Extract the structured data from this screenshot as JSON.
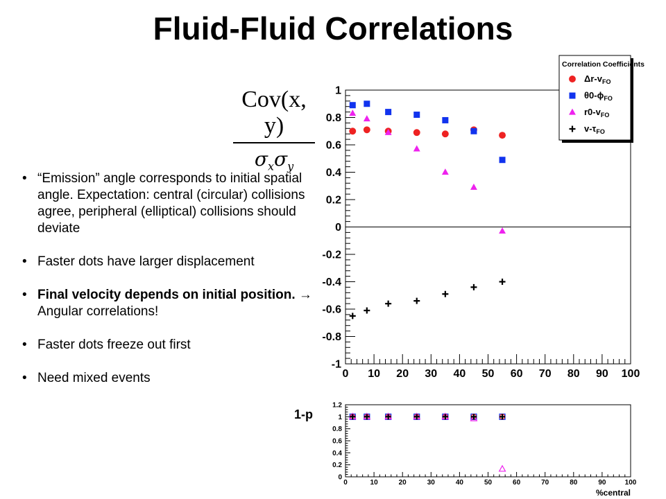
{
  "slide": {
    "title": "Fluid-Fluid Correlations",
    "formula": {
      "numerator": "Cov(x, y)",
      "denominator": "σxσy"
    },
    "bullets": [
      {
        "text": "“Emission” angle corresponds to initial spatial angle. Expectation: central (circular) collisions agree, peripheral (elliptical) collisions should deviate"
      },
      {
        "text": "Faster dots have larger displacement"
      },
      {
        "bold_text": "Final velocity depends on initial position.",
        "text": " → Angular correlations!"
      },
      {
        "text": "Faster dots freeze out first"
      },
      {
        "text": "Need mixed events"
      }
    ],
    "side_label": "1-p"
  },
  "chart_data": [
    {
      "type": "scatter",
      "title": "",
      "xlabel": "",
      "ylabel": "",
      "xlim": [
        0,
        100
      ],
      "ylim": [
        -1,
        1
      ],
      "xticks": [
        "0",
        "10",
        "20",
        "30",
        "40",
        "50",
        "60",
        "70",
        "80",
        "90",
        "100"
      ],
      "yticks": [
        "-1",
        "-0.8",
        "-0.6",
        "-0.4",
        "-0.2",
        "0",
        "0.2",
        "0.4",
        "0.6",
        "0.8",
        "1"
      ],
      "legend": {
        "title": "Correlation Coefficients",
        "position": "top-right",
        "entries": [
          "Δr-v_FO",
          "θ0-ϕ_FO",
          "r0-v_FO",
          "v-τ_FO"
        ]
      },
      "series": [
        {
          "name": "Δr-v_FO",
          "marker": "circle",
          "color": "#ee2222",
          "x": [
            2.5,
            7.5,
            15,
            25,
            35,
            45,
            55
          ],
          "y": [
            0.7,
            0.71,
            0.7,
            0.69,
            0.68,
            0.71,
            0.67
          ]
        },
        {
          "name": "θ0-ϕ_FO",
          "marker": "square",
          "color": "#1133ee",
          "x": [
            2.5,
            7.5,
            15,
            25,
            35,
            45,
            55
          ],
          "y": [
            0.89,
            0.9,
            0.84,
            0.82,
            0.78,
            0.7,
            0.49
          ]
        },
        {
          "name": "r0-v_FO",
          "marker": "triangle",
          "color": "#ee22ee",
          "x": [
            2.5,
            7.5,
            15,
            25,
            35,
            45,
            55
          ],
          "y": [
            0.83,
            0.79,
            0.69,
            0.57,
            0.4,
            0.29,
            -0.03
          ]
        },
        {
          "name": "v-τ_FO",
          "marker": "plus",
          "color": "#000000",
          "x": [
            2.5,
            7.5,
            15,
            25,
            35,
            45,
            55
          ],
          "y": [
            -0.65,
            -0.61,
            -0.56,
            -0.54,
            -0.49,
            -0.44,
            -0.4
          ]
        }
      ]
    },
    {
      "type": "scatter",
      "title": "",
      "xlabel": "%central",
      "ylabel": "",
      "xlim": [
        0,
        100
      ],
      "ylim": [
        0,
        1.2
      ],
      "xticks": [
        "0",
        "10",
        "20",
        "30",
        "40",
        "50",
        "60",
        "70",
        "80",
        "90",
        "100"
      ],
      "yticks": [
        "0",
        "0.2",
        "0.4",
        "0.6",
        "0.8",
        "1",
        "1.2"
      ],
      "series": [
        {
          "marker": "open-square",
          "color": "#1133ee",
          "x": [
            2.5,
            7.5,
            15,
            25,
            35,
            45,
            55
          ],
          "y": [
            1,
            1,
            1,
            1,
            1,
            1,
            1
          ]
        },
        {
          "marker": "open-circle",
          "color": "#ee2222",
          "x": [
            2.5,
            7.5,
            15,
            25,
            35,
            45,
            55
          ],
          "y": [
            1,
            1,
            1,
            1,
            1,
            1,
            1
          ]
        },
        {
          "marker": "open-triangle",
          "color": "#ee22ee",
          "x": [
            2.5,
            7.5,
            15,
            25,
            35,
            45,
            55
          ],
          "y": [
            1,
            1,
            1,
            1,
            1,
            0.97,
            0.13
          ]
        },
        {
          "marker": "plus",
          "color": "#000000",
          "x": [
            2.5,
            7.5,
            15,
            25,
            35,
            45,
            55
          ],
          "y": [
            1,
            1,
            1,
            1,
            1,
            1,
            1
          ]
        }
      ]
    }
  ]
}
